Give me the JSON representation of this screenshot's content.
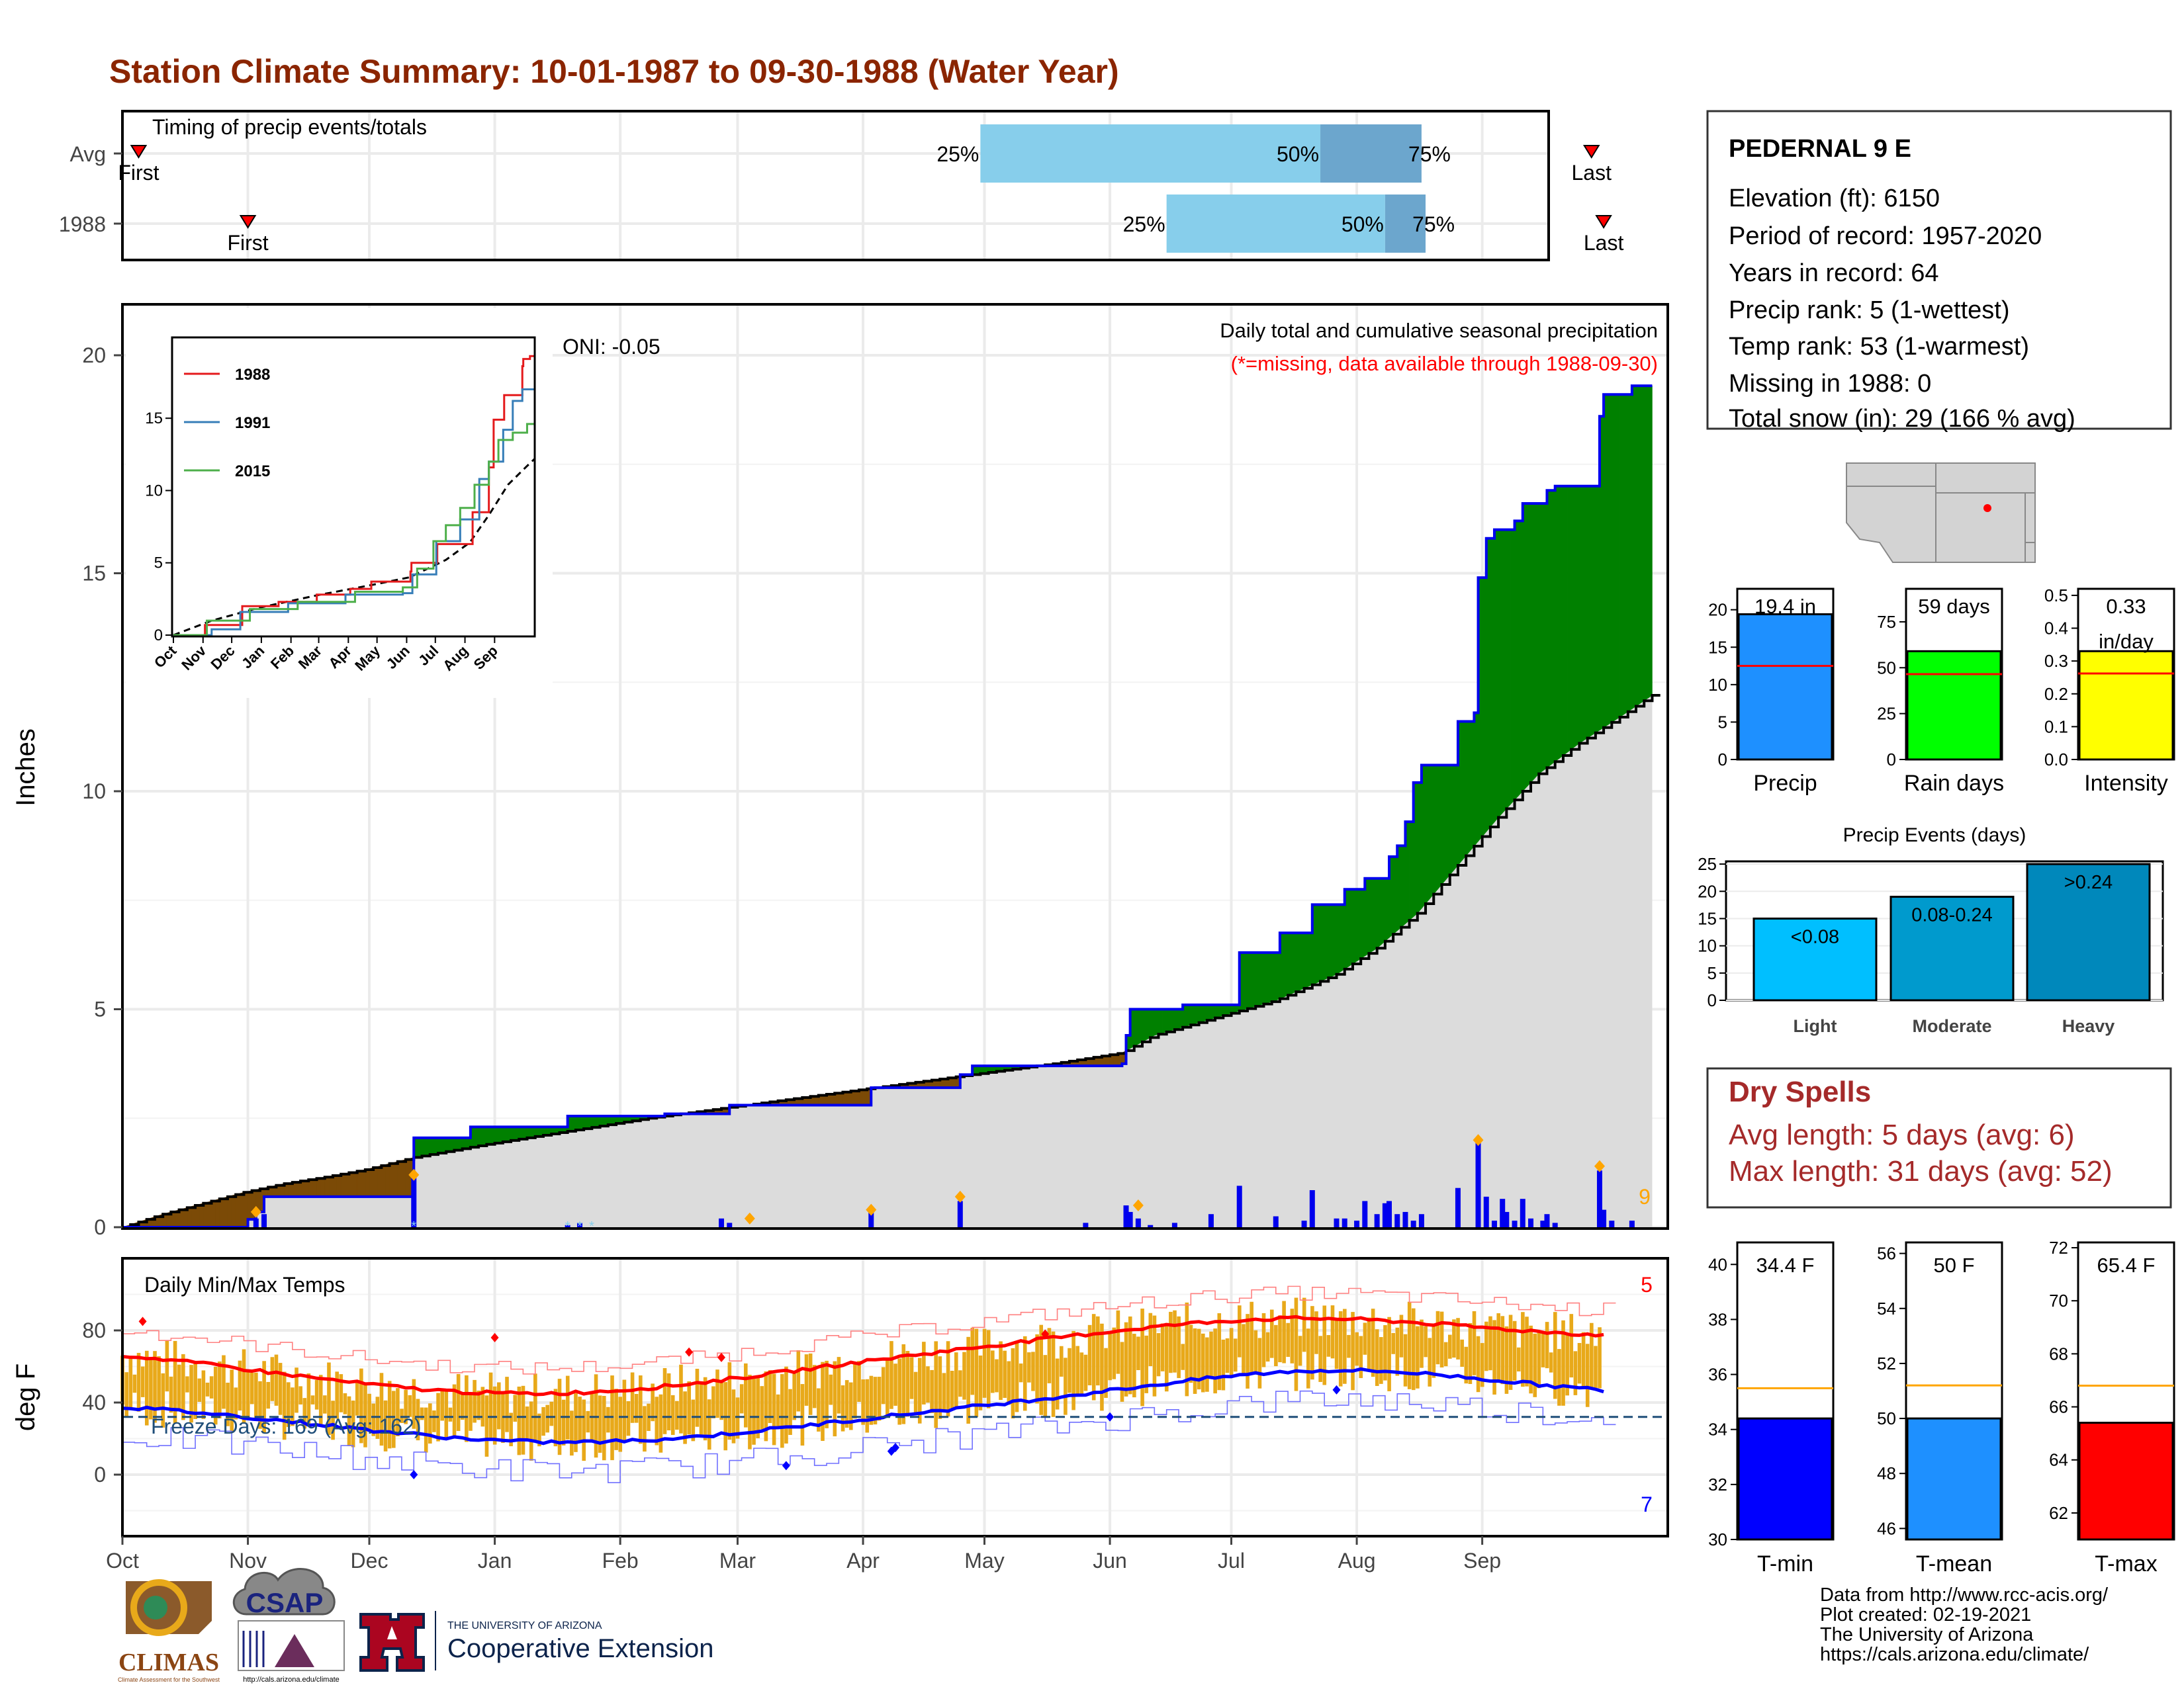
{
  "title": "Station Climate Summary: 10-01-1987 to 09-30-1988 (Water Year)",
  "colors": {
    "title": "#8B2500",
    "precip_green": "#008000",
    "precip_brown": "#7B4A06",
    "avg_gray": "#DCDCDC",
    "cum_blue": "#0000EE",
    "marker_orange": "#FFA500",
    "temp_bar": "#E8A91A",
    "tmax_line": "#FF0000",
    "tmin_line": "#0000FF",
    "freeze_line": "#1F4E79",
    "light_blue": "#87CEEB",
    "mid_blue": "#6CA6CD",
    "red": "#FF0000",
    "dry_spells": "#A52A2A"
  },
  "months": [
    "Oct",
    "Nov",
    "Dec",
    "Jan",
    "Feb",
    "Mar",
    "Apr",
    "May",
    "Jun",
    "Jul",
    "Aug",
    "Sep"
  ],
  "timing": {
    "label": "Timing of precip events/totals",
    "rows": [
      {
        "name": "Avg",
        "first_label": "First",
        "last_label": "Last",
        "p25_label": "25%",
        "p50_label": "50%",
        "p75_label": "75%",
        "first_doy": 4,
        "last_doy": 363,
        "p25_doy": 212,
        "p50_doy": 296,
        "p75_doy": 321
      },
      {
        "name": "1988",
        "first_label": "First",
        "last_label": "Last",
        "p25_label": "25%",
        "p50_label": "50%",
        "p75_label": "75%",
        "first_doy": 31,
        "last_doy": 366,
        "p25_doy": 258,
        "p50_doy": 312,
        "p75_doy": 322
      }
    ]
  },
  "precip_panel": {
    "ylabel": "Inches",
    "title": "Daily total and cumulative seasonal precipitation",
    "subtitle": "(*=missing, data available through 1988-09-30)",
    "oni": "ONI: -0.05",
    "corner_count": "9",
    "ylim": [
      0,
      21.2
    ],
    "yticks": [
      0,
      5,
      10,
      15,
      20
    ],
    "cumulative_1988": [
      [
        0,
        0
      ],
      [
        31,
        0.18
      ],
      [
        33,
        0.35
      ],
      [
        35,
        0.7
      ],
      [
        71,
        0.7
      ],
      [
        72,
        2.05
      ],
      [
        85,
        2.05
      ],
      [
        86,
        2.3
      ],
      [
        109,
        2.3
      ],
      [
        110,
        2.55
      ],
      [
        133,
        2.55
      ],
      [
        134,
        2.6
      ],
      [
        148,
        2.6
      ],
      [
        150,
        2.8
      ],
      [
        184,
        2.8
      ],
      [
        185,
        3.2
      ],
      [
        206,
        3.2
      ],
      [
        207,
        3.5
      ],
      [
        210,
        3.7
      ],
      [
        247,
        3.75
      ],
      [
        248,
        4.4
      ],
      [
        249,
        5.0
      ],
      [
        261,
        5.0
      ],
      [
        262,
        5.1
      ],
      [
        275,
        5.1
      ],
      [
        276,
        6.3
      ],
      [
        285,
        6.3
      ],
      [
        286,
        6.75
      ],
      [
        292,
        6.75
      ],
      [
        294,
        7.4
      ],
      [
        300,
        7.4
      ],
      [
        302,
        7.75
      ],
      [
        305,
        7.75
      ],
      [
        307,
        8.0
      ],
      [
        311,
        8.0
      ],
      [
        313,
        8.5
      ],
      [
        315,
        8.75
      ],
      [
        317,
        9.3
      ],
      [
        319,
        10.2
      ],
      [
        321,
        10.6
      ],
      [
        329,
        10.6
      ],
      [
        330,
        11.6
      ],
      [
        334,
        11.8
      ],
      [
        335,
        14.9
      ],
      [
        337,
        15.8
      ],
      [
        339,
        16.0
      ],
      [
        344,
        16.2
      ],
      [
        346,
        16.6
      ],
      [
        351,
        16.6
      ],
      [
        352,
        16.9
      ],
      [
        354,
        17.0
      ],
      [
        364,
        17.0
      ],
      [
        365,
        18.6
      ],
      [
        366,
        19.1
      ],
      [
        372,
        19.1
      ],
      [
        373,
        19.3
      ],
      [
        378,
        19.3
      ]
    ],
    "avg_cumulative": [
      [
        0,
        0
      ],
      [
        10,
        0.3
      ],
      [
        20,
        0.55
      ],
      [
        30,
        0.8
      ],
      [
        40,
        1.0
      ],
      [
        50,
        1.15
      ],
      [
        60,
        1.32
      ],
      [
        72,
        1.6
      ],
      [
        90,
        1.9
      ],
      [
        110,
        2.2
      ],
      [
        130,
        2.5
      ],
      [
        150,
        2.75
      ],
      [
        170,
        3.0
      ],
      [
        190,
        3.25
      ],
      [
        210,
        3.5
      ],
      [
        230,
        3.75
      ],
      [
        247,
        4.0
      ],
      [
        255,
        4.4
      ],
      [
        270,
        4.8
      ],
      [
        285,
        5.2
      ],
      [
        300,
        5.8
      ],
      [
        310,
        6.4
      ],
      [
        320,
        7.2
      ],
      [
        330,
        8.3
      ],
      [
        340,
        9.4
      ],
      [
        350,
        10.4
      ],
      [
        360,
        11.1
      ],
      [
        370,
        11.7
      ],
      [
        378,
        12.2
      ]
    ],
    "daily_precip": [
      [
        33,
        0.2
      ],
      [
        35,
        0.3
      ],
      [
        72,
        1.2
      ],
      [
        110,
        0.05
      ],
      [
        113,
        0.1
      ],
      [
        148,
        0.2
      ],
      [
        150,
        0.1
      ],
      [
        185,
        0.35
      ],
      [
        207,
        0.6
      ],
      [
        238,
        0.1
      ],
      [
        248,
        0.5
      ],
      [
        249,
        0.35
      ],
      [
        251,
        0.2
      ],
      [
        254,
        0.05
      ],
      [
        260,
        0.1
      ],
      [
        269,
        0.3
      ],
      [
        276,
        0.95
      ],
      [
        285,
        0.25
      ],
      [
        292,
        0.15
      ],
      [
        294,
        0.85
      ],
      [
        300,
        0.2
      ],
      [
        302,
        0.2
      ],
      [
        305,
        0.15
      ],
      [
        307,
        0.6
      ],
      [
        310,
        0.3
      ],
      [
        312,
        0.55
      ],
      [
        313,
        0.6
      ],
      [
        315,
        0.3
      ],
      [
        317,
        0.35
      ],
      [
        319,
        0.15
      ],
      [
        321,
        0.3
      ],
      [
        330,
        0.9
      ],
      [
        335,
        2.0
      ],
      [
        337,
        0.7
      ],
      [
        339,
        0.15
      ],
      [
        341,
        0.65
      ],
      [
        342,
        0.35
      ],
      [
        344,
        0.15
      ],
      [
        346,
        0.65
      ],
      [
        348,
        0.2
      ],
      [
        351,
        0.15
      ],
      [
        352,
        0.3
      ],
      [
        354,
        0.1
      ],
      [
        365,
        1.3
      ],
      [
        366,
        0.4
      ],
      [
        368,
        0.15
      ],
      [
        373,
        0.15
      ]
    ],
    "marker_days": [
      [
        33,
        0.35
      ],
      [
        72,
        1.2
      ],
      [
        155,
        0.2
      ],
      [
        185,
        0.4
      ],
      [
        207,
        0.7
      ],
      [
        251,
        0.5
      ],
      [
        335,
        2.0
      ],
      [
        365,
        1.4
      ]
    ],
    "snow_days": [
      72,
      110,
      113,
      113
    ]
  },
  "inset": {
    "series": [
      {
        "name": "1988",
        "color": "#E41A1C"
      },
      {
        "name": "1991",
        "color": "#377EB8"
      },
      {
        "name": "2015",
        "color": "#4DAF4A"
      }
    ],
    "ylim": [
      0,
      20.5
    ],
    "yticks": [
      0,
      5,
      10,
      15
    ],
    "months": [
      "Oct",
      "Nov",
      "Dec",
      "Jan",
      "Feb",
      "Mar",
      "Apr",
      "May",
      "Jun",
      "Jul",
      "Aug",
      "Sep"
    ],
    "series_1988": [
      [
        0,
        0
      ],
      [
        33,
        0.7
      ],
      [
        72,
        2.0
      ],
      [
        110,
        2.3
      ],
      [
        150,
        2.8
      ],
      [
        185,
        3.2
      ],
      [
        207,
        3.7
      ],
      [
        248,
        4.4
      ],
      [
        249,
        5.0
      ],
      [
        276,
        6.3
      ],
      [
        313,
        8.5
      ],
      [
        330,
        11.6
      ],
      [
        335,
        14.9
      ],
      [
        346,
        16.6
      ],
      [
        365,
        18.6
      ],
      [
        366,
        19.1
      ],
      [
        373,
        19.3
      ],
      [
        378,
        19.3
      ]
    ],
    "series_1991": [
      [
        0,
        0
      ],
      [
        40,
        0.4
      ],
      [
        70,
        1.6
      ],
      [
        120,
        2.2
      ],
      [
        180,
        2.8
      ],
      [
        240,
        2.9
      ],
      [
        250,
        4.2
      ],
      [
        275,
        6.5
      ],
      [
        300,
        8.0
      ],
      [
        320,
        10.8
      ],
      [
        330,
        12.0
      ],
      [
        345,
        14.2
      ],
      [
        355,
        16.2
      ],
      [
        365,
        17.0
      ],
      [
        378,
        17.3
      ]
    ],
    "series_2015": [
      [
        0,
        0
      ],
      [
        35,
        1.0
      ],
      [
        80,
        1.8
      ],
      [
        130,
        2.3
      ],
      [
        190,
        3.0
      ],
      [
        240,
        3.3
      ],
      [
        255,
        4.6
      ],
      [
        272,
        6.5
      ],
      [
        285,
        7.6
      ],
      [
        300,
        8.8
      ],
      [
        315,
        10.4
      ],
      [
        330,
        12.0
      ],
      [
        340,
        13.5
      ],
      [
        355,
        14.0
      ],
      [
        370,
        14.6
      ],
      [
        378,
        15.0
      ]
    ],
    "avg_series": [
      [
        0,
        0
      ],
      [
        40,
        1.0
      ],
      [
        90,
        1.9
      ],
      [
        150,
        2.75
      ],
      [
        210,
        3.5
      ],
      [
        247,
        4.0
      ],
      [
        285,
        5.2
      ],
      [
        310,
        6.4
      ],
      [
        330,
        8.3
      ],
      [
        350,
        10.4
      ],
      [
        370,
        11.7
      ],
      [
        378,
        12.2
      ]
    ]
  },
  "temp_panel": {
    "ylabel": "deg F",
    "title": "Daily Min/Max Temps",
    "freeze_label": "Freeze Days: 169 (Avg: 162)",
    "corner_top": "5",
    "corner_bottom": "7",
    "ylim": [
      -30,
      106
    ],
    "yticks": [
      0,
      40,
      80
    ],
    "freeze_line_f": 32
  },
  "station": {
    "name": "PEDERNAL 9 E",
    "lines": [
      "Elevation (ft): 6150",
      "Period of record: 1957-2020",
      "Years in record: 64",
      "Precip rank: 5 (1-wettest)",
      "Temp rank: 53 (1-warmest)",
      "Missing in 1988: 0",
      "Total snow (in): 29 (166 % avg)"
    ]
  },
  "stat_bars": [
    {
      "name": "Precip",
      "label": "19.4 in",
      "value": 19.4,
      "avg": 12.5,
      "ylim": [
        0,
        22.8
      ],
      "yticks": [
        0,
        5,
        10,
        15,
        20
      ],
      "color": "#1E90FF"
    },
    {
      "name": "Rain days",
      "label": "59 days",
      "value": 59,
      "avg": 46.5,
      "ylim": [
        0,
        93
      ],
      "yticks": [
        0,
        25,
        50,
        75
      ],
      "color": "#00FF00"
    },
    {
      "name": "Intensity",
      "label": "0.33",
      "label2": "in/day",
      "value": 0.33,
      "avg": 0.262,
      "ylim": [
        0,
        0.52
      ],
      "yticks": [
        "0.0",
        "0.1",
        "0.2",
        "0.3",
        "0.4",
        "0.5"
      ],
      "color": "#FFFF00"
    }
  ],
  "events": {
    "title": "Precip Events (days)",
    "ylim": [
      0,
      25.5
    ],
    "yticks": [
      0,
      5,
      10,
      15,
      20,
      25
    ],
    "categories": [
      "Light",
      "Moderate",
      "Heavy"
    ],
    "values": [
      15,
      19,
      25
    ],
    "labels": [
      "<0.08",
      "0.08-0.24",
      ">0.24"
    ],
    "colors": [
      "#00BFFF",
      "#009ACD",
      "#0088BB"
    ]
  },
  "dry_spells": {
    "title": "Dry Spells",
    "lines": [
      "Avg length: 5 days (avg: 6)",
      "Max length: 31 days (avg: 52)"
    ]
  },
  "temp_bars": [
    {
      "name": "T-min",
      "label": "34.4 F",
      "value": 34.4,
      "avg": 35.5,
      "ylim": [
        30,
        40.8
      ],
      "yticks": [
        30,
        32,
        34,
        36,
        38,
        40
      ],
      "color": "#0000FF"
    },
    {
      "name": "T-mean",
      "label": "50 F",
      "value": 50.0,
      "avg": 51.2,
      "ylim": [
        45.6,
        56.4
      ],
      "yticks": [
        46,
        48,
        50,
        52,
        54,
        56
      ],
      "color": "#1E90FF"
    },
    {
      "name": "T-max",
      "label": "65.4 F",
      "value": 65.4,
      "avg": 66.8,
      "ylim": [
        61,
        72.2
      ],
      "yticks": [
        62,
        64,
        66,
        68,
        70,
        72
      ],
      "color": "#FF0000"
    }
  ],
  "footer": {
    "lines": [
      "Data from http://www.rcc-acis.org/",
      "Plot created: 02-19-2021",
      "The University of Arizona",
      "https://cals.arizona.edu/climate/"
    ]
  },
  "logos": {
    "climas_text": "CLIMAS",
    "climas_sub": "Climate Assessment for the Southwest",
    "csap_text": "CSAP",
    "csap_url": "http://cals.arizona.edu/climate",
    "ua_small": "THE UNIVERSITY OF ARIZONA",
    "ua_big": "Cooperative Extension"
  }
}
